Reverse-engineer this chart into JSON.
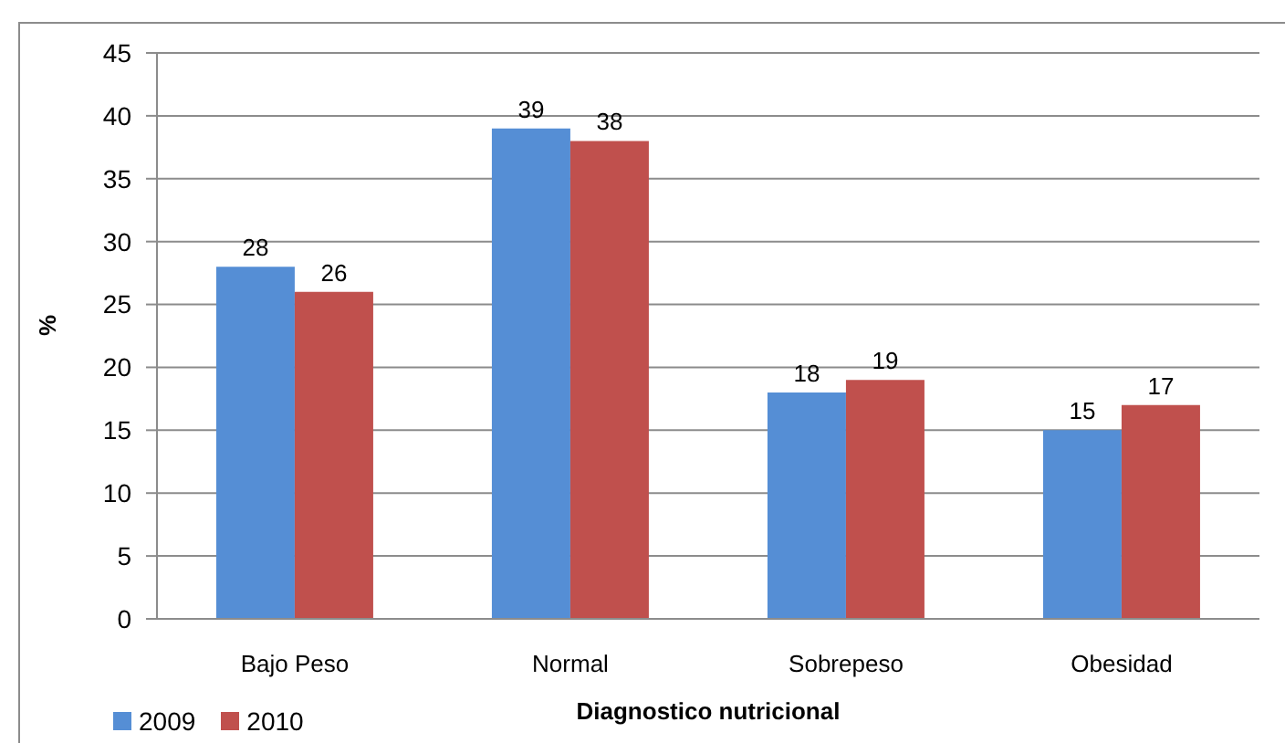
{
  "chart_data": {
    "type": "bar",
    "xlabel": "Diagnostico nutricional",
    "ylabel": "%",
    "categories": [
      "Bajo Peso",
      "Normal",
      "Sobrepeso",
      "Obesidad"
    ],
    "series": [
      {
        "name": "2009",
        "color": "#558ed5",
        "values": [
          28,
          39,
          18,
          15
        ]
      },
      {
        "name": "2010",
        "color": "#c0504d",
        "values": [
          26,
          38,
          19,
          17
        ]
      }
    ],
    "ylim": [
      0,
      45
    ],
    "yticks": [
      0,
      5,
      10,
      15,
      20,
      25,
      30,
      35,
      40,
      45
    ],
    "grid": "y",
    "legend": "bottom left",
    "data_labels": true
  }
}
